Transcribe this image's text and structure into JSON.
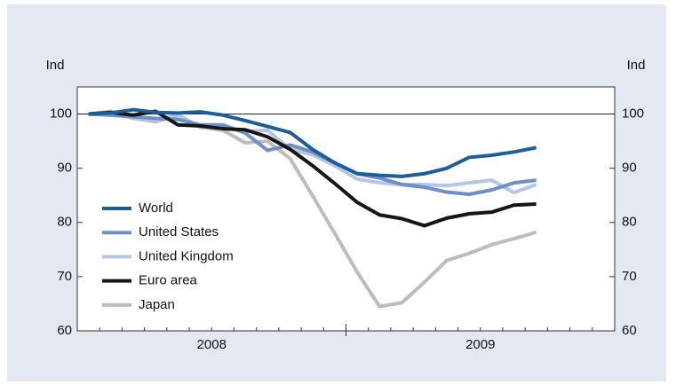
{
  "chart_data": {
    "type": "line",
    "ylabel": "Ind",
    "y2label": "Ind",
    "x": [
      2008.042,
      2008.125,
      2008.208,
      2008.292,
      2008.375,
      2008.458,
      2008.542,
      2008.625,
      2008.708,
      2008.792,
      2008.875,
      2008.958,
      2009.042,
      2009.125,
      2009.208,
      2009.292,
      2009.375,
      2009.458,
      2009.542,
      2009.625,
      2009.708
    ],
    "xlim": [
      2008,
      2010
    ],
    "xticks": [
      {
        "value": 2008.5,
        "label": "2008"
      },
      {
        "value": 2009.5,
        "label": "2009"
      }
    ],
    "ylim": [
      60,
      105
    ],
    "yticks": [
      60,
      70,
      80,
      90,
      100
    ],
    "y2lim": [
      60,
      105
    ],
    "y2ticks": [
      60,
      70,
      80,
      90,
      100
    ],
    "reference_line": 100,
    "series": [
      {
        "name": "World",
        "color": "#1b5e9a",
        "values": [
          100,
          100.2,
          100.8,
          100.3,
          100.2,
          100.4,
          99.8,
          98.8,
          97.7,
          96.6,
          93.5,
          91,
          89,
          88.7,
          88.5,
          89,
          90,
          92,
          92.4,
          93,
          93.8
        ]
      },
      {
        "name": "United States",
        "color": "#6d8fc8",
        "values": [
          100,
          99.8,
          99.5,
          99.2,
          99,
          98,
          98,
          96.5,
          93.3,
          94.3,
          93,
          91,
          89,
          88.2,
          87,
          86.5,
          85.6,
          85.2,
          86,
          87.3,
          87.8
        ]
      },
      {
        "name": "United Kingdom",
        "color": "#b3c6e8",
        "values": [
          100,
          100.3,
          99.2,
          98.8,
          99.9,
          97.5,
          97.5,
          96.8,
          97,
          93.5,
          92.5,
          90.5,
          88,
          87.3,
          87,
          87,
          86.8,
          87.3,
          87.8,
          85.5,
          87
        ]
      },
      {
        "name": "Euro area",
        "color": "#161616",
        "values": [
          100,
          100.3,
          99.8,
          100.5,
          98,
          97.8,
          97.3,
          97.1,
          95.8,
          93.5,
          90.5,
          87.2,
          83.7,
          81.4,
          80.7,
          79.4,
          80.8,
          81.6,
          81.9,
          83.2,
          83.4
        ]
      },
      {
        "name": "Japan",
        "color": "#bcbcbc",
        "values": [
          100,
          100.5,
          99.2,
          98.6,
          99.8,
          97.6,
          97,
          94.7,
          95,
          91.8,
          85,
          78,
          70.8,
          64.5,
          65.2,
          69,
          73,
          74.3,
          75.9,
          77,
          78.2
        ]
      }
    ]
  }
}
